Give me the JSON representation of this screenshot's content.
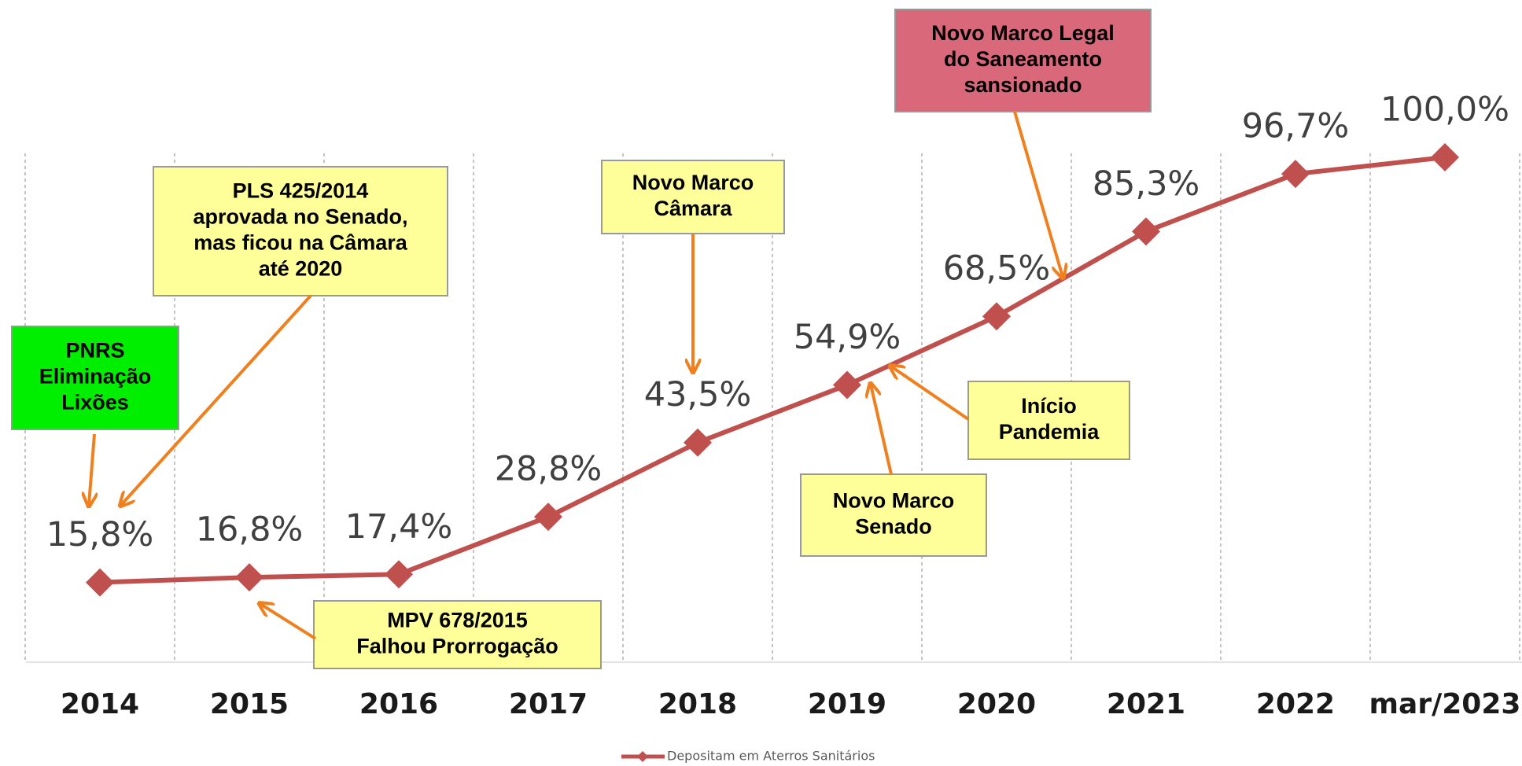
{
  "chart_data": {
    "type": "line",
    "categories": [
      "2014",
      "2015",
      "2016",
      "2017",
      "2018",
      "2019",
      "2020",
      "2021",
      "2022",
      "mar/2023"
    ],
    "series": [
      {
        "name": "Depositam em Aterros Sanitários",
        "color": "#c0504d",
        "values": [
          15.8,
          16.8,
          17.4,
          28.8,
          43.5,
          54.9,
          68.5,
          85.3,
          96.7,
          100.0
        ],
        "value_labels": [
          "15,8%",
          "16,8%",
          "17,4%",
          "28,8%",
          "43,5%",
          "54,9%",
          "68,5%",
          "85,3%",
          "96,7%",
          "100,0%"
        ]
      }
    ],
    "ylim": [
      0,
      100
    ],
    "annotations": [
      {
        "lines": [
          "PNRS",
          "Eliminação",
          "Lixões"
        ],
        "color": "#00ee00"
      },
      {
        "lines": [
          "PLS 425/2014",
          "aprovada no Senado,",
          "mas ficou na Câmara",
          "até 2020"
        ],
        "color": "#ffff99"
      },
      {
        "lines": [
          "Novo Marco",
          "Câmara"
        ],
        "color": "#ffff99"
      },
      {
        "lines": [
          "Novo Marco Legal",
          "do Saneamento",
          "sansionado"
        ],
        "color": "#d9687a"
      },
      {
        "lines": [
          "Início",
          "Pandemia"
        ],
        "color": "#ffff99"
      },
      {
        "lines": [
          "Novo Marco",
          "Senado"
        ],
        "color": "#ffff99"
      },
      {
        "lines": [
          "MPV 678/2015",
          "Falhou Prorrogação"
        ],
        "color": "#ffff99"
      }
    ]
  }
}
